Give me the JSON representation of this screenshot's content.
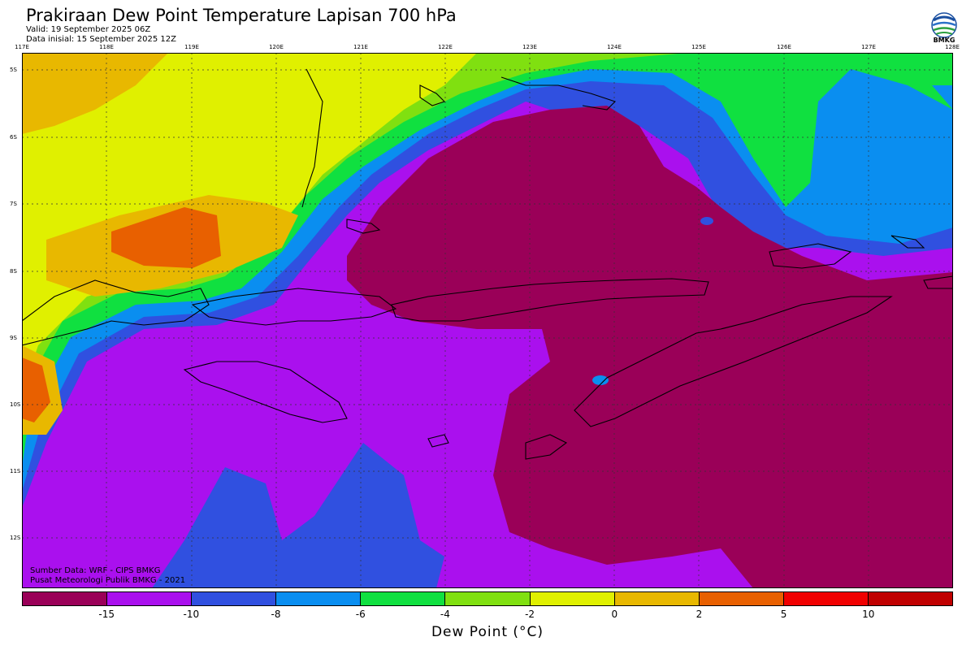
{
  "title": "Prakiraan Dew Point Temperature Lapisan 700 hPa",
  "valid": "Valid: 19 September 2025 06Z",
  "init": "Data inisial: 15 September 2025 12Z",
  "logo_text": "BMKG",
  "lon_ticks": [
    "117E",
    "118E",
    "119E",
    "120E",
    "121E",
    "122E",
    "123E",
    "124E",
    "125E",
    "126E",
    "127E",
    "128E"
  ],
  "lat_ticks": [
    "5S",
    "6S",
    "7S",
    "8S",
    "9S",
    "10S",
    "11S",
    "12S"
  ],
  "credit_source": "Sumber Data: WRF - CIPS BMKG",
  "credit_org": "Pusat Meteorologi Publik BMKG - 2021",
  "colorbar": {
    "colors": [
      "#9a0058",
      "#aa10ee",
      "#3050e0",
      "#0a8ef0",
      "#10e040",
      "#80e010",
      "#e0f000",
      "#e8b800",
      "#e86000",
      "#f00000",
      "#c00000"
    ],
    "labels": [
      "-15",
      "-10",
      "-8",
      "-6",
      "-4",
      "-2",
      "0",
      "2",
      "5",
      "10"
    ]
  },
  "unit_label": "Dew Point (°C)",
  "chart_data": {
    "type": "heatmap",
    "title": "Prakiraan Dew Point Temperature Lapisan 700 hPa",
    "xlabel": "",
    "ylabel": "",
    "xlim": [
      117,
      128
    ],
    "ylim": [
      -13,
      -5
    ],
    "levels": [
      -15,
      -10,
      -8,
      -6,
      -4,
      -2,
      0,
      2,
      5,
      10
    ],
    "legend": "bottom"
  }
}
